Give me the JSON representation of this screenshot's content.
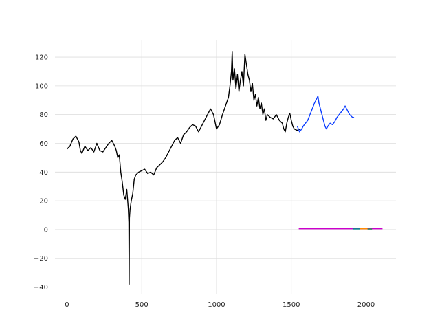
{
  "chart_data": {
    "type": "line",
    "title": "",
    "xlabel": "",
    "ylabel": "",
    "xlim": [
      -80,
      2200
    ],
    "ylim": [
      -45,
      132
    ],
    "grid": true,
    "x_ticks": [
      0,
      500,
      1000,
      1500,
      2000
    ],
    "y_ticks": [
      -40,
      -20,
      0,
      20,
      40,
      60,
      80,
      100,
      120
    ],
    "series": [
      {
        "color": "#000000",
        "points": [
          [
            0,
            56
          ],
          [
            20,
            58
          ],
          [
            40,
            63
          ],
          [
            60,
            65
          ],
          [
            80,
            61
          ],
          [
            90,
            55
          ],
          [
            100,
            53
          ],
          [
            120,
            58
          ],
          [
            140,
            55
          ],
          [
            160,
            57
          ],
          [
            180,
            54
          ],
          [
            200,
            60
          ],
          [
            220,
            55
          ],
          [
            240,
            54
          ],
          [
            260,
            57
          ],
          [
            280,
            60
          ],
          [
            300,
            62
          ],
          [
            320,
            58
          ],
          [
            330,
            55
          ],
          [
            340,
            50
          ],
          [
            350,
            52
          ],
          [
            360,
            40
          ],
          [
            370,
            33
          ],
          [
            380,
            24
          ],
          [
            390,
            21
          ],
          [
            400,
            28
          ],
          [
            410,
            15
          ],
          [
            414,
            5
          ],
          [
            416,
            -38
          ],
          [
            418,
            8
          ],
          [
            422,
            14
          ],
          [
            430,
            20
          ],
          [
            440,
            25
          ],
          [
            450,
            35
          ],
          [
            460,
            38
          ],
          [
            480,
            40
          ],
          [
            500,
            41
          ],
          [
            520,
            42
          ],
          [
            540,
            39
          ],
          [
            560,
            40
          ],
          [
            580,
            38
          ],
          [
            600,
            43
          ],
          [
            620,
            45
          ],
          [
            640,
            47
          ],
          [
            660,
            50
          ],
          [
            680,
            54
          ],
          [
            700,
            58
          ],
          [
            720,
            62
          ],
          [
            740,
            64
          ],
          [
            760,
            60
          ],
          [
            780,
            66
          ],
          [
            800,
            68
          ],
          [
            820,
            71
          ],
          [
            840,
            73
          ],
          [
            860,
            72
          ],
          [
            880,
            68
          ],
          [
            900,
            72
          ],
          [
            920,
            76
          ],
          [
            940,
            80
          ],
          [
            960,
            84
          ],
          [
            980,
            80
          ],
          [
            1000,
            70
          ],
          [
            1020,
            73
          ],
          [
            1040,
            80
          ],
          [
            1060,
            86
          ],
          [
            1080,
            92
          ],
          [
            1090,
            100
          ],
          [
            1100,
            110
          ],
          [
            1105,
            124
          ],
          [
            1110,
            104
          ],
          [
            1120,
            112
          ],
          [
            1130,
            98
          ],
          [
            1140,
            108
          ],
          [
            1150,
            96
          ],
          [
            1160,
            104
          ],
          [
            1170,
            110
          ],
          [
            1180,
            100
          ],
          [
            1190,
            122
          ],
          [
            1200,
            115
          ],
          [
            1210,
            108
          ],
          [
            1220,
            104
          ],
          [
            1230,
            96
          ],
          [
            1240,
            102
          ],
          [
            1250,
            90
          ],
          [
            1260,
            94
          ],
          [
            1270,
            86
          ],
          [
            1280,
            92
          ],
          [
            1290,
            84
          ],
          [
            1300,
            88
          ],
          [
            1310,
            80
          ],
          [
            1320,
            84
          ],
          [
            1330,
            76
          ],
          [
            1340,
            80
          ],
          [
            1360,
            78
          ],
          [
            1380,
            77
          ],
          [
            1400,
            80
          ],
          [
            1420,
            76
          ],
          [
            1440,
            74
          ],
          [
            1450,
            70
          ],
          [
            1460,
            68
          ],
          [
            1470,
            74
          ],
          [
            1480,
            78
          ],
          [
            1490,
            81
          ],
          [
            1500,
            76
          ],
          [
            1510,
            72
          ],
          [
            1520,
            70
          ],
          [
            1540,
            69
          ],
          [
            1560,
            70
          ]
        ]
      },
      {
        "color": "#0a3cff",
        "points": [
          [
            1540,
            72
          ],
          [
            1555,
            68
          ],
          [
            1570,
            70
          ],
          [
            1580,
            72
          ],
          [
            1595,
            74
          ],
          [
            1610,
            76
          ],
          [
            1625,
            80
          ],
          [
            1640,
            84
          ],
          [
            1655,
            88
          ],
          [
            1670,
            91
          ],
          [
            1678,
            93
          ],
          [
            1685,
            88
          ],
          [
            1695,
            84
          ],
          [
            1705,
            80
          ],
          [
            1715,
            76
          ],
          [
            1725,
            72
          ],
          [
            1735,
            70
          ],
          [
            1745,
            72
          ],
          [
            1760,
            74
          ],
          [
            1775,
            73
          ],
          [
            1790,
            75
          ],
          [
            1805,
            78
          ],
          [
            1820,
            80
          ],
          [
            1835,
            82
          ],
          [
            1850,
            84
          ],
          [
            1860,
            86
          ],
          [
            1870,
            84
          ],
          [
            1880,
            82
          ],
          [
            1890,
            80
          ],
          [
            1900,
            79
          ],
          [
            1910,
            78
          ],
          [
            1920,
            78
          ]
        ]
      },
      {
        "color": "#cc00cc",
        "points": [
          [
            1550,
            0.6
          ],
          [
            2110,
            0.6
          ]
        ]
      },
      {
        "color": "#008b8b",
        "points": [
          [
            1910,
            0.5
          ],
          [
            1960,
            0.5
          ]
        ]
      },
      {
        "color": "#ff8c00",
        "points": [
          [
            1960,
            0.6
          ],
          [
            2010,
            0.6
          ]
        ]
      },
      {
        "color": "#2e8b57",
        "points": [
          [
            2010,
            0.4
          ],
          [
            2040,
            0.4
          ]
        ]
      }
    ]
  }
}
